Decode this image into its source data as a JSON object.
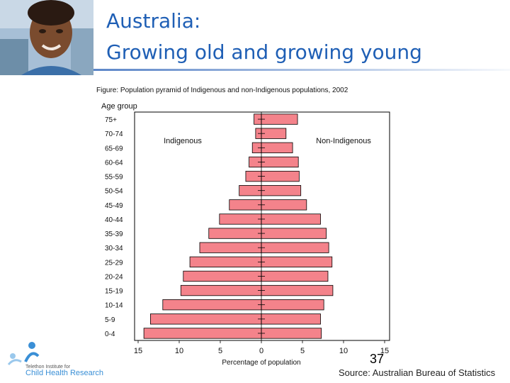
{
  "slide": {
    "title_line1": "Australia:",
    "title_line2": "Growing old and growing young",
    "figure_caption": "Figure:  Population pyramid of Indigenous and non-Indigenous  populations, 2002",
    "page_number": "37",
    "source": "Source: Australian Bureau of Statistics",
    "logo_line1": "Telethon Institute for",
    "logo_line2": "Child Health Research"
  },
  "chart_data": {
    "type": "bar",
    "orientation": "horizontal",
    "subtype": "population-pyramid",
    "title": "",
    "ylabel": "Age group",
    "xlabel": "Percentage of population",
    "categories": [
      "75+",
      "70-74",
      "65-69",
      "60-64",
      "55-59",
      "50-54",
      "45-49",
      "40-44",
      "35-39",
      "30-34",
      "25-29",
      "20-24",
      "15-19",
      "10-14",
      "5-9",
      "0-4"
    ],
    "series": [
      {
        "name": "Indigenous",
        "side": "left",
        "values": [
          0.9,
          0.7,
          1.1,
          1.5,
          1.9,
          2.7,
          3.9,
          5.1,
          6.4,
          7.5,
          8.7,
          9.5,
          9.8,
          12.0,
          13.5,
          14.3
        ]
      },
      {
        "name": "Non-Indigenous",
        "side": "right",
        "values": [
          4.4,
          3.0,
          3.8,
          4.5,
          4.6,
          4.8,
          5.5,
          7.2,
          7.9,
          8.2,
          8.6,
          8.1,
          8.7,
          7.6,
          7.2,
          7.3
        ]
      }
    ],
    "xlim": [
      -15,
      15
    ],
    "xticks": [
      -15,
      -10,
      -5,
      0,
      5,
      10,
      15
    ],
    "xtick_labels": [
      "15",
      "10",
      "5",
      "0",
      "5",
      "10",
      "15"
    ],
    "grid": false,
    "bar_color": "#f4838b",
    "bar_edge": "#000000"
  }
}
